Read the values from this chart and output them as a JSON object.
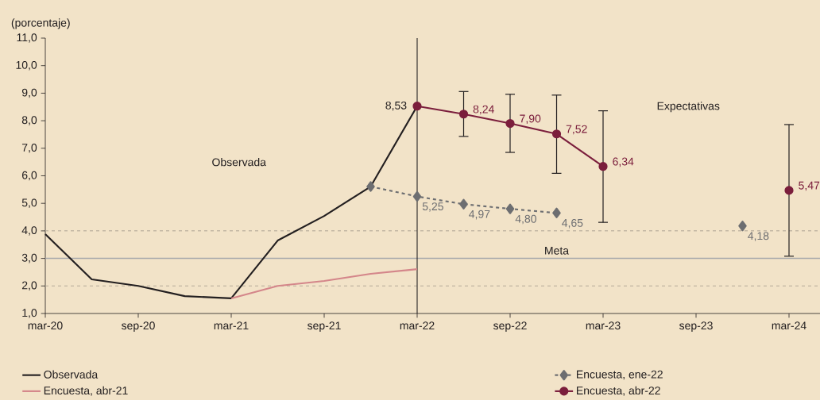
{
  "chart_data": {
    "type": "line",
    "ylabel": "(porcentaje)",
    "x": [
      "2020-03",
      "2020-06",
      "2020-09",
      "2020-12",
      "2021-03",
      "2021-06",
      "2021-09",
      "2021-12",
      "2022-03",
      "2022-06",
      "2022-09",
      "2022-12",
      "2023-03",
      "2023-06",
      "2023-09",
      "2023-12",
      "2024-03"
    ],
    "series": [
      {
        "name": "Observada",
        "color": "#231f20",
        "marker": "none",
        "line_style": "solid",
        "values": [
          3.88,
          2.24,
          2.0,
          1.63,
          1.55,
          3.65,
          4.54,
          5.61,
          8.53,
          null,
          null,
          null,
          null,
          null,
          null,
          null,
          null
        ],
        "value_labels": [
          null,
          null,
          null,
          null,
          null,
          null,
          null,
          null,
          "8,53",
          null,
          null,
          null,
          null,
          null,
          null,
          null,
          null
        ]
      },
      {
        "name": "Encuesta, ene-22",
        "color": "#6d6e71",
        "marker": "diamond",
        "line_style": "dashed",
        "values": [
          null,
          null,
          null,
          null,
          null,
          null,
          null,
          5.61,
          5.25,
          4.97,
          4.8,
          4.65,
          null,
          null,
          null,
          4.18,
          null
        ],
        "value_labels": [
          null,
          null,
          null,
          null,
          null,
          null,
          null,
          null,
          "5,25",
          "4,97",
          "4,80",
          "4,65",
          null,
          null,
          null,
          "4,18",
          null
        ]
      },
      {
        "name": "Encuesta, abr-21",
        "color": "#d4868a",
        "marker": "none",
        "line_style": "solid",
        "values": [
          null,
          null,
          null,
          null,
          1.55,
          2.0,
          2.18,
          2.44,
          2.61,
          null,
          null,
          null,
          null,
          null,
          null,
          null,
          null
        ]
      },
      {
        "name": "Encuesta, abr-22",
        "color": "#7b1e3c",
        "marker": "circle",
        "line_style": "solid",
        "values": [
          null,
          null,
          null,
          null,
          null,
          null,
          null,
          null,
          8.53,
          8.24,
          7.9,
          7.52,
          6.34,
          null,
          null,
          null,
          5.47
        ],
        "value_labels": [
          null,
          null,
          null,
          null,
          null,
          null,
          null,
          null,
          null,
          "8,24",
          "7,90",
          "7,52",
          "6,34",
          null,
          null,
          null,
          "5,47"
        ],
        "errors": [
          null,
          null,
          null,
          null,
          null,
          null,
          null,
          null,
          null,
          [
            7.43,
            9.06
          ],
          [
            6.85,
            8.96
          ],
          [
            6.09,
            8.93
          ],
          [
            4.31,
            8.36
          ],
          null,
          null,
          null,
          [
            3.08,
            7.86
          ]
        ]
      }
    ],
    "xlim": [
      "2020-03",
      "2024-05"
    ],
    "xticks": [
      {
        "value": "2020-03",
        "label": "mar-20"
      },
      {
        "value": "2020-09",
        "label": "sep-20"
      },
      {
        "value": "2021-03",
        "label": "mar-21"
      },
      {
        "value": "2021-09",
        "label": "sep-21"
      },
      {
        "value": "2022-03",
        "label": "mar-22"
      },
      {
        "value": "2022-09",
        "label": "sep-22"
      },
      {
        "value": "2023-03",
        "label": "mar-23"
      },
      {
        "value": "2023-09",
        "label": "sep-23"
      },
      {
        "value": "2024-03",
        "label": "mar-24"
      }
    ],
    "ylim": [
      1,
      11
    ],
    "yticks": [
      {
        "value": 1,
        "label": "1,0"
      },
      {
        "value": 2,
        "label": "2,0"
      },
      {
        "value": 3,
        "label": "3,0"
      },
      {
        "value": 4,
        "label": "4,0"
      },
      {
        "value": 5,
        "label": "5,0"
      },
      {
        "value": 6,
        "label": "6,0"
      },
      {
        "value": 7,
        "label": "7,0"
      },
      {
        "value": 8,
        "label": "8,0"
      },
      {
        "value": 9,
        "label": "9,0"
      },
      {
        "value": 10,
        "label": "10,0"
      },
      {
        "value": 11,
        "label": "11,0"
      }
    ],
    "ref_lines": [
      {
        "axis": "y",
        "value": 4,
        "color": "#b5aa98",
        "line_style": "dashed"
      },
      {
        "axis": "y",
        "value": 2,
        "color": "#b5aa98",
        "line_style": "dashed"
      },
      {
        "axis": "y",
        "value": 3,
        "color": "#a7a9ac",
        "line_style": "solid",
        "label": "Meta"
      },
      {
        "axis": "x",
        "value": "2022-03",
        "color": "#231f20",
        "line_style": "solid"
      }
    ],
    "annotations": [
      "Observada",
      "Expectativas"
    ],
    "grid": false,
    "legend": "bottom"
  }
}
